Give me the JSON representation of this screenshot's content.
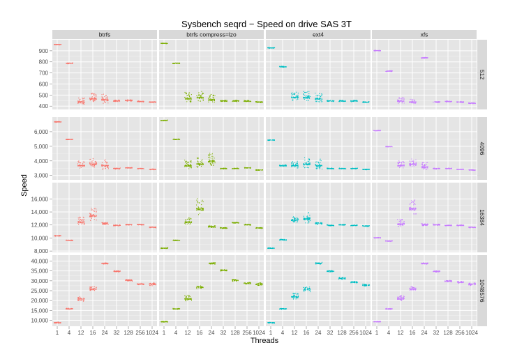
{
  "chart_data": {
    "type": "scatter",
    "title": "Sysbench seqrd − Speed on drive SAS 3T",
    "xlabel": "Threads",
    "ylabel": "Speed",
    "grid": true,
    "facet_columns": [
      "btrfs",
      "btrfs compress=lzo",
      "ext4",
      "xfs"
    ],
    "facet_rows": [
      "512",
      "4096",
      "16384",
      "1048576"
    ],
    "x_categories": [
      "1",
      "4",
      "12",
      "16",
      "24",
      "32",
      "128",
      "256",
      "1024"
    ],
    "x_tick_labels": [
      "1",
      "4",
      "12",
      "16",
      "24",
      "32",
      "128",
      "256",
      "1024"
    ],
    "series_colors": {
      "btrfs": "#F8766D",
      "btrfs compress=lzo": "#7CAE00",
      "ext4": "#00BFC4",
      "xfs": "#C77CFF"
    },
    "rows": [
      {
        "label": "512",
        "ylim": [
          370,
          1000
        ],
        "y_ticks": [
          400,
          500,
          600,
          700,
          800,
          900
        ],
        "y_tick_labels": [
          "400",
          "500",
          "600",
          "700",
          "800",
          "900"
        ],
        "panels": [
          {
            "column": "btrfs",
            "means": [
              960,
              790,
              440,
              470,
              460,
              450,
              455,
              445,
              440
            ],
            "spreads": [
              5,
              8,
              60,
              80,
              90,
              12,
              10,
              8,
              8
            ]
          },
          {
            "column": "btrfs compress=lzo",
            "means": [
              970,
              790,
              470,
              480,
              460,
              450,
              450,
              450,
              440
            ],
            "spreads": [
              5,
              8,
              90,
              90,
              80,
              10,
              10,
              10,
              8
            ]
          },
          {
            "column": "ext4",
            "means": [
              930,
              760,
              480,
              480,
              470,
              450,
              450,
              450,
              440
            ],
            "spreads": [
              5,
              8,
              80,
              90,
              80,
              10,
              10,
              10,
              8
            ]
          },
          {
            "column": "xfs",
            "means": [
              905,
              720,
              450,
              440,
              840,
              440,
              445,
              440,
              430
            ],
            "spreads": [
              5,
              8,
              60,
              40,
              8,
              10,
              10,
              8,
              8
            ]
          }
        ]
      },
      {
        "label": "4096",
        "ylim": [
          2700,
          7000
        ],
        "y_ticks": [
          3000,
          4000,
          5000,
          6000
        ],
        "y_tick_labels": [
          "3,000",
          "4,000",
          "5,000",
          "6,000"
        ],
        "panels": [
          {
            "column": "btrfs",
            "means": [
              6700,
              5500,
              3700,
              3800,
              3700,
              3500,
              3550,
              3500,
              3450
            ],
            "spreads": [
              40,
              40,
              500,
              600,
              700,
              60,
              50,
              50,
              50
            ]
          },
          {
            "column": "btrfs compress=lzo",
            "means": [
              6800,
              5500,
              3700,
              3800,
              4000,
              3500,
              3500,
              3550,
              3400
            ],
            "spreads": [
              40,
              40,
              600,
              700,
              900,
              60,
              50,
              50,
              50
            ]
          },
          {
            "column": "ext4",
            "means": [
              5450,
              3700,
              3700,
              3800,
              3700,
              3500,
              3500,
              3500,
              3450
            ],
            "spreads": [
              40,
              80,
              500,
              700,
              700,
              60,
              50,
              50,
              50
            ]
          },
          {
            "column": "xfs",
            "means": [
              6100,
              5000,
              3700,
              3800,
              3600,
              3500,
              3500,
              3450,
              3400
            ],
            "spreads": [
              40,
              40,
              500,
              600,
              500,
              60,
              50,
              50,
              50
            ]
          }
        ]
      },
      {
        "label": "16384",
        "ylim": [
          7800,
          18500
        ],
        "y_ticks": [
          8000,
          10000,
          12000,
          14000,
          16000
        ],
        "y_tick_labels": [
          "8,000",
          "10,000",
          "12,000",
          "14,000",
          "16,000"
        ],
        "panels": [
          {
            "column": "btrfs",
            "means": [
              10400,
              9700,
              12500,
              13500,
              12300,
              12000,
              12100,
              12100,
              11700
            ],
            "spreads": [
              100,
              100,
              1200,
              2200,
              300,
              150,
              120,
              120,
              120
            ]
          },
          {
            "column": "btrfs compress=lzo",
            "means": [
              8500,
              9700,
              12500,
              14500,
              11800,
              11600,
              12400,
              12100,
              11600
            ],
            "spreads": [
              100,
              100,
              1000,
              2500,
              300,
              150,
              120,
              120,
              120
            ]
          },
          {
            "column": "ext4",
            "means": [
              8500,
              9800,
              12800,
              13000,
              12300,
              12000,
              12100,
              12000,
              11900
            ],
            "spreads": [
              100,
              150,
              900,
              2000,
              300,
              150,
              120,
              120,
              120
            ]
          },
          {
            "column": "xfs",
            "means": [
              10100,
              9600,
              12200,
              14500,
              12100,
              12100,
              12000,
              12000,
              11700
            ],
            "spreads": [
              100,
              100,
              1200,
              2500,
              300,
              150,
              120,
              120,
              120
            ]
          }
        ]
      },
      {
        "label": "1048576",
        "ylim": [
          7000,
          43000
        ],
        "y_ticks": [
          10000,
          15000,
          20000,
          25000,
          30000,
          35000,
          40000
        ],
        "y_tick_labels": [
          "10,000",
          "15,000",
          "20,000",
          "25,000",
          "30,000",
          "35,000",
          "40,000"
        ],
        "panels": [
          {
            "column": "btrfs",
            "means": [
              9000,
              16000,
              21000,
              26000,
              39000,
              35000,
              30500,
              28500,
              28500
            ],
            "spreads": [
              400,
              400,
              1800,
              2000,
              700,
              600,
              800,
              700,
              1200
            ]
          },
          {
            "column": "btrfs compress=lzo",
            "means": [
              9500,
              16000,
              21000,
              27000,
              39000,
              35500,
              30500,
              29000,
              28500
            ],
            "spreads": [
              400,
              400,
              3000,
              1000,
              700,
              600,
              800,
              700,
              1200
            ]
          },
          {
            "column": "ext4",
            "means": [
              9000,
              16000,
              22000,
              26000,
              39000,
              35000,
              31500,
              29500,
              28000
            ],
            "spreads": [
              400,
              400,
              3000,
              1800,
              700,
              600,
              800,
              700,
              1000
            ]
          },
          {
            "column": "xfs",
            "means": [
              9500,
              16000,
              21000,
              26000,
              39000,
              35000,
              30000,
              29500,
              28500
            ],
            "spreads": [
              400,
              400,
              3000,
              2000,
              700,
              600,
              800,
              700,
              1000
            ]
          }
        ]
      }
    ]
  }
}
